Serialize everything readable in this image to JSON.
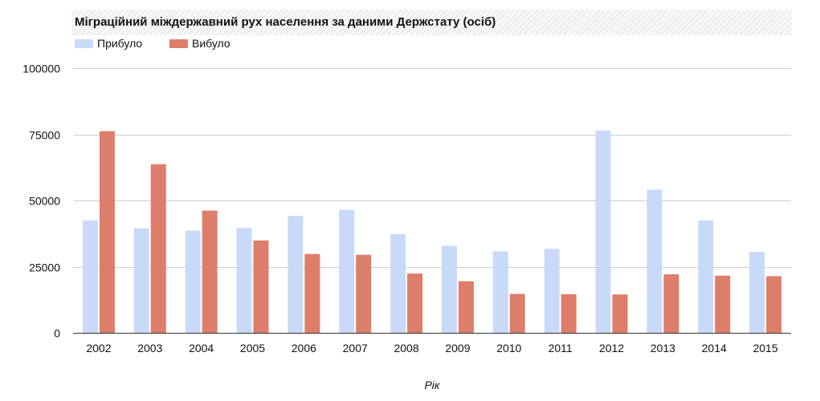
{
  "chart_data": {
    "type": "bar",
    "title": "Міграційний міждержавний рух населення за даними Держстату (осіб)",
    "xlabel": "Рік",
    "ylabel": "",
    "categories": [
      "2002",
      "2003",
      "2004",
      "2005",
      "2006",
      "2007",
      "2008",
      "2009",
      "2010",
      "2011",
      "2012",
      "2013",
      "2014",
      "2015"
    ],
    "series": [
      {
        "name": "Прибуло",
        "color": "#c9daf8",
        "values": [
          42500,
          39500,
          38600,
          39600,
          44200,
          46500,
          37300,
          32900,
          30800,
          31700,
          76400,
          54100,
          42500,
          30600
        ]
      },
      {
        "name": "Вибуло",
        "color": "#dd7e6b",
        "values": [
          76200,
          63700,
          46200,
          34900,
          29800,
          29500,
          22400,
          19500,
          14700,
          14600,
          14500,
          22100,
          21600,
          21400
        ]
      }
    ],
    "ylim": [
      0,
      100000
    ],
    "yticks": [
      0,
      25000,
      50000,
      75000,
      100000
    ],
    "grid": true,
    "legend_position": "top-left"
  }
}
